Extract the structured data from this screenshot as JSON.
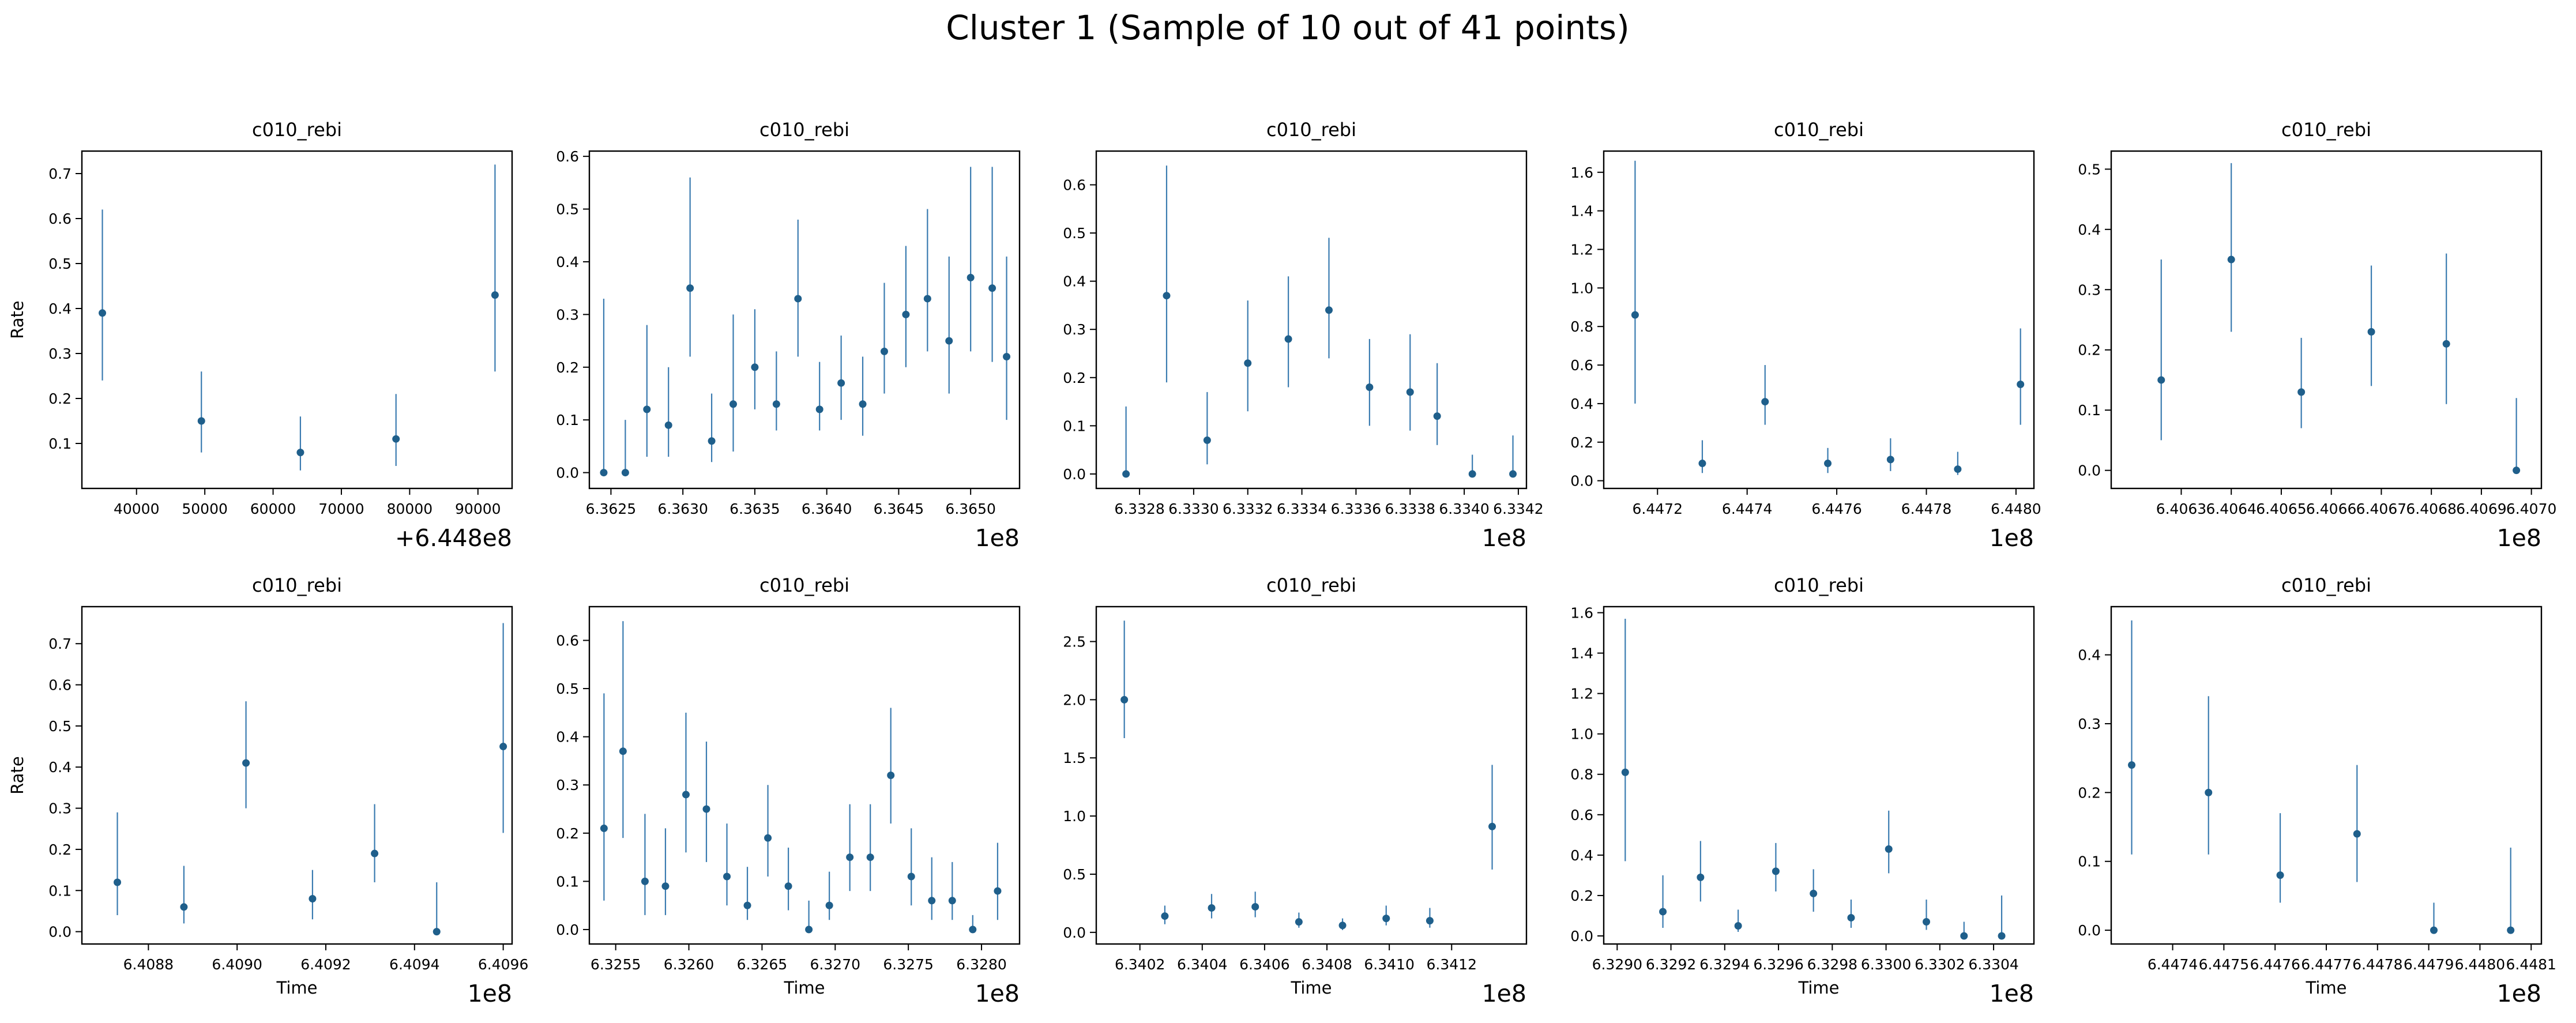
{
  "figure": {
    "title": "Cluster 1 (Sample of 10 out of 41 points)",
    "colors": {
      "marker": "#1f5f8b",
      "errorbar": "#3a7bb0",
      "axis": "#000000"
    }
  },
  "chart_data": [
    {
      "type": "scatter",
      "errorbars": true,
      "title": "c010_rebi",
      "xlabel": "",
      "ylabel": "Rate",
      "offset_text": "+6.448e8",
      "xlim": [
        32000,
        95000
      ],
      "xticks": [
        40000,
        50000,
        60000,
        70000,
        80000,
        90000
      ],
      "xticklabels": [
        "40000",
        "50000",
        "60000",
        "70000",
        "80000",
        "90000"
      ],
      "ylim": [
        0.0,
        0.75
      ],
      "yticks": [
        0.1,
        0.2,
        0.3,
        0.4,
        0.5,
        0.6,
        0.7
      ],
      "yticklabels": [
        "0.1",
        "0.2",
        "0.3",
        "0.4",
        "0.5",
        "0.6",
        "0.7"
      ],
      "points": [
        {
          "x": 35000,
          "y": 0.39,
          "lo": 0.24,
          "hi": 0.62
        },
        {
          "x": 49500,
          "y": 0.15,
          "lo": 0.08,
          "hi": 0.26
        },
        {
          "x": 64000,
          "y": 0.08,
          "lo": 0.04,
          "hi": 0.16
        },
        {
          "x": 78000,
          "y": 0.11,
          "lo": 0.05,
          "hi": 0.21
        },
        {
          "x": 92500,
          "y": 0.43,
          "lo": 0.26,
          "hi": 0.72
        }
      ]
    },
    {
      "type": "scatter",
      "errorbars": true,
      "title": "c010_rebi",
      "xlabel": "",
      "ylabel": "",
      "offset_text": "1e8",
      "xlim": [
        6.36235,
        6.36534
      ],
      "xticks": [
        6.3625,
        6.363,
        6.3635,
        6.364,
        6.3645,
        6.365
      ],
      "xticklabels": [
        "6.3625",
        "6.3630",
        "6.3635",
        "6.3640",
        "6.3645",
        "6.3650"
      ],
      "ylim": [
        -0.03,
        0.61
      ],
      "yticks": [
        0.0,
        0.1,
        0.2,
        0.3,
        0.4,
        0.5,
        0.6
      ],
      "yticklabels": [
        "0.0",
        "0.1",
        "0.2",
        "0.3",
        "0.4",
        "0.5",
        "0.6"
      ],
      "points": [
        {
          "x": 6.36245,
          "y": 0.0,
          "lo": 0.0,
          "hi": 0.33
        },
        {
          "x": 6.3626,
          "y": 0.0,
          "lo": 0.0,
          "hi": 0.1
        },
        {
          "x": 6.36275,
          "y": 0.12,
          "lo": 0.03,
          "hi": 0.28
        },
        {
          "x": 6.3629,
          "y": 0.09,
          "lo": 0.03,
          "hi": 0.2
        },
        {
          "x": 6.36305,
          "y": 0.35,
          "lo": 0.22,
          "hi": 0.56
        },
        {
          "x": 6.3632,
          "y": 0.06,
          "lo": 0.02,
          "hi": 0.15
        },
        {
          "x": 6.36335,
          "y": 0.13,
          "lo": 0.04,
          "hi": 0.3
        },
        {
          "x": 6.3635,
          "y": 0.2,
          "lo": 0.12,
          "hi": 0.31
        },
        {
          "x": 6.36365,
          "y": 0.13,
          "lo": 0.08,
          "hi": 0.23
        },
        {
          "x": 6.3638,
          "y": 0.33,
          "lo": 0.22,
          "hi": 0.48
        },
        {
          "x": 6.36395,
          "y": 0.12,
          "lo": 0.08,
          "hi": 0.21
        },
        {
          "x": 6.3641,
          "y": 0.17,
          "lo": 0.1,
          "hi": 0.26
        },
        {
          "x": 6.36425,
          "y": 0.13,
          "lo": 0.07,
          "hi": 0.22
        },
        {
          "x": 6.3644,
          "y": 0.23,
          "lo": 0.15,
          "hi": 0.36
        },
        {
          "x": 6.36455,
          "y": 0.3,
          "lo": 0.2,
          "hi": 0.43
        },
        {
          "x": 6.3647,
          "y": 0.33,
          "lo": 0.23,
          "hi": 0.5
        },
        {
          "x": 6.36485,
          "y": 0.25,
          "lo": 0.15,
          "hi": 0.41
        },
        {
          "x": 6.365,
          "y": 0.37,
          "lo": 0.23,
          "hi": 0.58
        },
        {
          "x": 6.36515,
          "y": 0.35,
          "lo": 0.21,
          "hi": 0.58
        },
        {
          "x": 6.36525,
          "y": 0.22,
          "lo": 0.1,
          "hi": 0.41
        }
      ]
    },
    {
      "type": "scatter",
      "errorbars": true,
      "title": "c010_rebi",
      "xlabel": "",
      "ylabel": "",
      "offset_text": "1e8",
      "xlim": [
        6.33264,
        6.33423
      ],
      "xticks": [
        6.3328,
        6.333,
        6.3332,
        6.3334,
        6.3336,
        6.3338,
        6.334,
        6.3342
      ],
      "xticklabels": [
        "6.3328",
        "6.3330",
        "6.3332",
        "6.3334",
        "6.3336",
        "6.3338",
        "6.3340",
        "6.3342"
      ],
      "ylim": [
        -0.03,
        0.67
      ],
      "yticks": [
        0.0,
        0.1,
        0.2,
        0.3,
        0.4,
        0.5,
        0.6
      ],
      "yticklabels": [
        "0.0",
        "0.1",
        "0.2",
        "0.3",
        "0.4",
        "0.5",
        "0.6"
      ],
      "points": [
        {
          "x": 6.33275,
          "y": 0.0,
          "lo": 0.0,
          "hi": 0.14
        },
        {
          "x": 6.3329,
          "y": 0.37,
          "lo": 0.19,
          "hi": 0.64
        },
        {
          "x": 6.33305,
          "y": 0.07,
          "lo": 0.02,
          "hi": 0.17
        },
        {
          "x": 6.3332,
          "y": 0.23,
          "lo": 0.13,
          "hi": 0.36
        },
        {
          "x": 6.33335,
          "y": 0.28,
          "lo": 0.18,
          "hi": 0.41
        },
        {
          "x": 6.3335,
          "y": 0.34,
          "lo": 0.24,
          "hi": 0.49
        },
        {
          "x": 6.33365,
          "y": 0.18,
          "lo": 0.1,
          "hi": 0.28
        },
        {
          "x": 6.3338,
          "y": 0.17,
          "lo": 0.09,
          "hi": 0.29
        },
        {
          "x": 6.3339,
          "y": 0.12,
          "lo": 0.06,
          "hi": 0.23
        },
        {
          "x": 6.33403,
          "y": 0.0,
          "lo": 0.0,
          "hi": 0.04
        },
        {
          "x": 6.33418,
          "y": 0.0,
          "lo": 0.0,
          "hi": 0.08
        }
      ]
    },
    {
      "type": "scatter",
      "errorbars": true,
      "title": "c010_rebi",
      "xlabel": "",
      "ylabel": "",
      "offset_text": "1e8",
      "xlim": [
        6.44708,
        6.44804
      ],
      "xticks": [
        6.4472,
        6.4474,
        6.4476,
        6.4478,
        6.448
      ],
      "xticklabels": [
        "6.4472",
        "6.4474",
        "6.4476",
        "6.4478",
        "6.4480"
      ],
      "ylim": [
        -0.04,
        1.71
      ],
      "yticks": [
        0.0,
        0.2,
        0.4,
        0.6,
        0.8,
        1.0,
        1.2,
        1.4,
        1.6
      ],
      "yticklabels": [
        "0.0",
        "0.2",
        "0.4",
        "0.6",
        "0.8",
        "1.0",
        "1.2",
        "1.4",
        "1.6"
      ],
      "points": [
        {
          "x": 6.44715,
          "y": 0.86,
          "lo": 0.4,
          "hi": 1.66
        },
        {
          "x": 6.4473,
          "y": 0.09,
          "lo": 0.04,
          "hi": 0.21
        },
        {
          "x": 6.44744,
          "y": 0.41,
          "lo": 0.29,
          "hi": 0.6
        },
        {
          "x": 6.44758,
          "y": 0.09,
          "lo": 0.04,
          "hi": 0.17
        },
        {
          "x": 6.44772,
          "y": 0.11,
          "lo": 0.05,
          "hi": 0.22
        },
        {
          "x": 6.44787,
          "y": 0.06,
          "lo": 0.03,
          "hi": 0.15
        },
        {
          "x": 6.44801,
          "y": 0.5,
          "lo": 0.29,
          "hi": 0.79
        }
      ]
    },
    {
      "type": "scatter",
      "errorbars": true,
      "title": "c010_rebi",
      "xlabel": "",
      "ylabel": "",
      "offset_text": "1e8",
      "xlim": [
        6.40616,
        6.40702
      ],
      "xticks": [
        6.4063,
        6.4064,
        6.4065,
        6.4066,
        6.4067,
        6.4068,
        6.4069,
        6.407
      ],
      "xticklabels": [
        "6.4063",
        "6.4064",
        "6.4065",
        "6.4066",
        "6.4067",
        "6.4068",
        "6.4069",
        "6.4070"
      ],
      "ylim": [
        -0.03,
        0.53
      ],
      "yticks": [
        0.0,
        0.1,
        0.2,
        0.3,
        0.4,
        0.5
      ],
      "yticklabels": [
        "0.0",
        "0.1",
        "0.2",
        "0.3",
        "0.4",
        "0.5"
      ],
      "points": [
        {
          "x": 6.40626,
          "y": 0.15,
          "lo": 0.05,
          "hi": 0.35
        },
        {
          "x": 6.4064,
          "y": 0.35,
          "lo": 0.23,
          "hi": 0.51
        },
        {
          "x": 6.40654,
          "y": 0.13,
          "lo": 0.07,
          "hi": 0.22
        },
        {
          "x": 6.40668,
          "y": 0.23,
          "lo": 0.14,
          "hi": 0.34
        },
        {
          "x": 6.40683,
          "y": 0.21,
          "lo": 0.11,
          "hi": 0.36
        },
        {
          "x": 6.40697,
          "y": 0.0,
          "lo": 0.0,
          "hi": 0.12
        }
      ]
    },
    {
      "type": "scatter",
      "errorbars": true,
      "title": "c010_rebi",
      "xlabel": "Time",
      "ylabel": "Rate",
      "offset_text": "1e8",
      "xlim": [
        6.40865,
        6.40962
      ],
      "xticks": [
        6.4088,
        6.409,
        6.4092,
        6.4094,
        6.4096
      ],
      "xticklabels": [
        "6.4088",
        "6.4090",
        "6.4092",
        "6.4094",
        "6.4096"
      ],
      "ylim": [
        -0.03,
        0.79
      ],
      "yticks": [
        0.0,
        0.1,
        0.2,
        0.3,
        0.4,
        0.5,
        0.6,
        0.7
      ],
      "yticklabels": [
        "0.0",
        "0.1",
        "0.2",
        "0.3",
        "0.4",
        "0.5",
        "0.6",
        "0.7"
      ],
      "points": [
        {
          "x": 6.40873,
          "y": 0.12,
          "lo": 0.04,
          "hi": 0.29
        },
        {
          "x": 6.40888,
          "y": 0.06,
          "lo": 0.02,
          "hi": 0.16
        },
        {
          "x": 6.40902,
          "y": 0.41,
          "lo": 0.3,
          "hi": 0.56
        },
        {
          "x": 6.40917,
          "y": 0.08,
          "lo": 0.03,
          "hi": 0.15
        },
        {
          "x": 6.40931,
          "y": 0.19,
          "lo": 0.12,
          "hi": 0.31
        },
        {
          "x": 6.40945,
          "y": 0.0,
          "lo": 0.0,
          "hi": 0.12
        },
        {
          "x": 6.4096,
          "y": 0.45,
          "lo": 0.24,
          "hi": 0.75
        }
      ]
    },
    {
      "type": "scatter",
      "errorbars": true,
      "title": "c010_rebi",
      "xlabel": "Time",
      "ylabel": "",
      "offset_text": "1e8",
      "xlim": [
        6.32532,
        6.32826
      ],
      "xticks": [
        6.3255,
        6.326,
        6.3265,
        6.327,
        6.3275,
        6.328
      ],
      "xticklabels": [
        "6.3255",
        "6.3260",
        "6.3265",
        "6.3270",
        "6.3275",
        "6.3280"
      ],
      "ylim": [
        -0.03,
        0.67
      ],
      "yticks": [
        0.0,
        0.1,
        0.2,
        0.3,
        0.4,
        0.5,
        0.6
      ],
      "yticklabels": [
        "0.0",
        "0.1",
        "0.2",
        "0.3",
        "0.4",
        "0.5",
        "0.6"
      ],
      "points": [
        {
          "x": 6.32542,
          "y": 0.21,
          "lo": 0.06,
          "hi": 0.49
        },
        {
          "x": 6.32555,
          "y": 0.37,
          "lo": 0.19,
          "hi": 0.64
        },
        {
          "x": 6.3257,
          "y": 0.1,
          "lo": 0.03,
          "hi": 0.24
        },
        {
          "x": 6.32584,
          "y": 0.09,
          "lo": 0.03,
          "hi": 0.21
        },
        {
          "x": 6.32598,
          "y": 0.28,
          "lo": 0.16,
          "hi": 0.45
        },
        {
          "x": 6.32612,
          "y": 0.25,
          "lo": 0.14,
          "hi": 0.39
        },
        {
          "x": 6.32626,
          "y": 0.11,
          "lo": 0.05,
          "hi": 0.22
        },
        {
          "x": 6.3264,
          "y": 0.05,
          "lo": 0.02,
          "hi": 0.13
        },
        {
          "x": 6.32654,
          "y": 0.19,
          "lo": 0.11,
          "hi": 0.3
        },
        {
          "x": 6.32668,
          "y": 0.09,
          "lo": 0.04,
          "hi": 0.17
        },
        {
          "x": 6.32682,
          "y": 0.0,
          "lo": 0.0,
          "hi": 0.06
        },
        {
          "x": 6.32696,
          "y": 0.05,
          "lo": 0.02,
          "hi": 0.12
        },
        {
          "x": 6.3271,
          "y": 0.15,
          "lo": 0.08,
          "hi": 0.26
        },
        {
          "x": 6.32724,
          "y": 0.15,
          "lo": 0.08,
          "hi": 0.26
        },
        {
          "x": 6.32738,
          "y": 0.32,
          "lo": 0.22,
          "hi": 0.46
        },
        {
          "x": 6.32752,
          "y": 0.11,
          "lo": 0.05,
          "hi": 0.21
        },
        {
          "x": 6.32766,
          "y": 0.06,
          "lo": 0.02,
          "hi": 0.15
        },
        {
          "x": 6.3278,
          "y": 0.06,
          "lo": 0.02,
          "hi": 0.14
        },
        {
          "x": 6.32794,
          "y": 0.0,
          "lo": 0.0,
          "hi": 0.03
        },
        {
          "x": 6.32811,
          "y": 0.08,
          "lo": 0.02,
          "hi": 0.18
        }
      ]
    },
    {
      "type": "scatter",
      "errorbars": true,
      "title": "c010_rebi",
      "xlabel": "Time",
      "ylabel": "",
      "offset_text": "1e8",
      "xlim": [
        6.34006,
        6.34144
      ],
      "xticks": [
        6.3402,
        6.3404,
        6.3406,
        6.3408,
        6.341,
        6.3412
      ],
      "xticklabels": [
        "6.3402",
        "6.3404",
        "6.3406",
        "6.3408",
        "6.3410",
        "6.3412"
      ],
      "ylim": [
        -0.1,
        2.8
      ],
      "yticks": [
        0.0,
        0.5,
        1.0,
        1.5,
        2.0,
        2.5
      ],
      "yticklabels": [
        "0.0",
        "0.5",
        "1.0",
        "1.5",
        "2.0",
        "2.5"
      ],
      "points": [
        {
          "x": 6.34015,
          "y": 2.0,
          "lo": 1.67,
          "hi": 2.68
        },
        {
          "x": 6.34028,
          "y": 0.14,
          "lo": 0.07,
          "hi": 0.23
        },
        {
          "x": 6.34043,
          "y": 0.21,
          "lo": 0.12,
          "hi": 0.33
        },
        {
          "x": 6.34057,
          "y": 0.22,
          "lo": 0.13,
          "hi": 0.35
        },
        {
          "x": 6.34071,
          "y": 0.09,
          "lo": 0.04,
          "hi": 0.17
        },
        {
          "x": 6.34085,
          "y": 0.06,
          "lo": 0.02,
          "hi": 0.12
        },
        {
          "x": 6.34099,
          "y": 0.12,
          "lo": 0.06,
          "hi": 0.23
        },
        {
          "x": 6.34113,
          "y": 0.1,
          "lo": 0.04,
          "hi": 0.21
        },
        {
          "x": 6.34133,
          "y": 0.91,
          "lo": 0.54,
          "hi": 1.44
        }
      ]
    },
    {
      "type": "scatter",
      "errorbars": true,
      "title": "c010_rebi",
      "xlabel": "Time",
      "ylabel": "",
      "offset_text": "1e8",
      "xlim": [
        6.32895,
        6.33055
      ],
      "xticks": [
        6.329,
        6.3292,
        6.3294,
        6.3296,
        6.3298,
        6.33,
        6.3302,
        6.3304
      ],
      "xticklabels": [
        "6.3290",
        "6.3292",
        "6.3294",
        "6.3296",
        "6.3298",
        "6.3300",
        "6.3302",
        "6.3304"
      ],
      "ylim": [
        -0.04,
        1.63
      ],
      "yticks": [
        0.0,
        0.2,
        0.4,
        0.6,
        0.8,
        1.0,
        1.2,
        1.4,
        1.6
      ],
      "yticklabels": [
        "0.0",
        "0.2",
        "0.4",
        "0.6",
        "0.8",
        "1.0",
        "1.2",
        "1.4",
        "1.6"
      ],
      "points": [
        {
          "x": 6.32903,
          "y": 0.81,
          "lo": 0.37,
          "hi": 1.57
        },
        {
          "x": 6.32917,
          "y": 0.12,
          "lo": 0.04,
          "hi": 0.3
        },
        {
          "x": 6.32931,
          "y": 0.29,
          "lo": 0.17,
          "hi": 0.47
        },
        {
          "x": 6.32945,
          "y": 0.05,
          "lo": 0.02,
          "hi": 0.13
        },
        {
          "x": 6.32959,
          "y": 0.32,
          "lo": 0.22,
          "hi": 0.46
        },
        {
          "x": 6.32973,
          "y": 0.21,
          "lo": 0.12,
          "hi": 0.33
        },
        {
          "x": 6.32987,
          "y": 0.09,
          "lo": 0.04,
          "hi": 0.18
        },
        {
          "x": 6.33001,
          "y": 0.43,
          "lo": 0.31,
          "hi": 0.62
        },
        {
          "x": 6.33015,
          "y": 0.07,
          "lo": 0.03,
          "hi": 0.18
        },
        {
          "x": 6.33029,
          "y": 0.0,
          "lo": 0.0,
          "hi": 0.07
        },
        {
          "x": 6.33043,
          "y": 0.0,
          "lo": 0.0,
          "hi": 0.2
        }
      ]
    },
    {
      "type": "scatter",
      "errorbars": true,
      "title": "c010_rebi",
      "xlabel": "Time",
      "ylabel": "",
      "offset_text": "1e8",
      "xlim": [
        6.44728,
        6.44812
      ],
      "xticks": [
        6.4474,
        6.4475,
        6.4476,
        6.4477,
        6.4478,
        6.4479,
        6.448,
        6.4481
      ],
      "xticklabels": [
        "6.4474",
        "6.4475",
        "6.4476",
        "6.4477",
        "6.4478",
        "6.4479",
        "6.4480",
        "6.4481"
      ],
      "ylim": [
        -0.02,
        0.47
      ],
      "yticks": [
        0.0,
        0.1,
        0.2,
        0.3,
        0.4
      ],
      "yticklabels": [
        "0.0",
        "0.1",
        "0.2",
        "0.3",
        "0.4"
      ],
      "points": [
        {
          "x": 6.44732,
          "y": 0.24,
          "lo": 0.11,
          "hi": 0.45
        },
        {
          "x": 6.44747,
          "y": 0.2,
          "lo": 0.11,
          "hi": 0.34
        },
        {
          "x": 6.44761,
          "y": 0.08,
          "lo": 0.04,
          "hi": 0.17
        },
        {
          "x": 6.44776,
          "y": 0.14,
          "lo": 0.07,
          "hi": 0.24
        },
        {
          "x": 6.44791,
          "y": 0.0,
          "lo": 0.0,
          "hi": 0.04
        },
        {
          "x": 6.44806,
          "y": 0.0,
          "lo": 0.0,
          "hi": 0.12
        }
      ]
    }
  ]
}
